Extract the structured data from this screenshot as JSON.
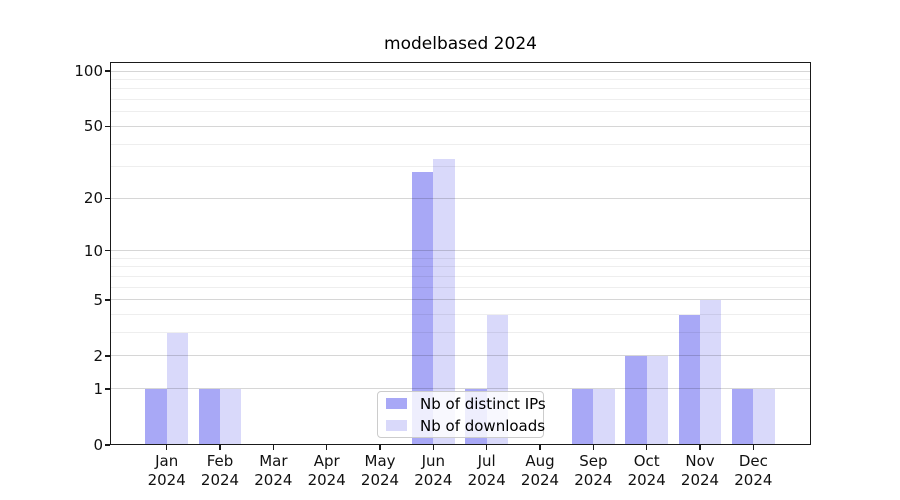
{
  "title": "modelbased 2024",
  "legend": {
    "items": [
      {
        "label": "Nb of distinct IPs",
        "color": "#a8a8f6"
      },
      {
        "label": "Nb of downloads",
        "color": "#d9d9fa"
      }
    ]
  },
  "chart_data": {
    "type": "bar",
    "title": "modelbased 2024",
    "xlabel": "",
    "ylabel": "",
    "scale": "log1p",
    "categories": [
      "Jan",
      "Feb",
      "Mar",
      "Apr",
      "May",
      "Jun",
      "Jul",
      "Aug",
      "Sep",
      "Oct",
      "Nov",
      "Dec"
    ],
    "category_year": "2024",
    "series": [
      {
        "name": "Nb of distinct IPs",
        "color": "#a8a8f6",
        "values": [
          1,
          1,
          0,
          0,
          0,
          28,
          1,
          0,
          1,
          2,
          4,
          1
        ]
      },
      {
        "name": "Nb of downloads",
        "color": "#d9d9fa",
        "values": [
          3,
          1,
          0,
          0,
          0,
          33,
          4,
          0,
          1,
          2,
          5,
          1
        ]
      }
    ],
    "yticks": [
      0,
      1,
      2,
      5,
      10,
      20,
      50,
      100
    ],
    "minor_yticks": [
      3,
      4,
      6,
      7,
      8,
      9,
      30,
      40,
      60,
      70,
      80,
      90
    ],
    "ylim": [
      0,
      112
    ],
    "grid": "on",
    "legend_position": "bottom-center"
  }
}
